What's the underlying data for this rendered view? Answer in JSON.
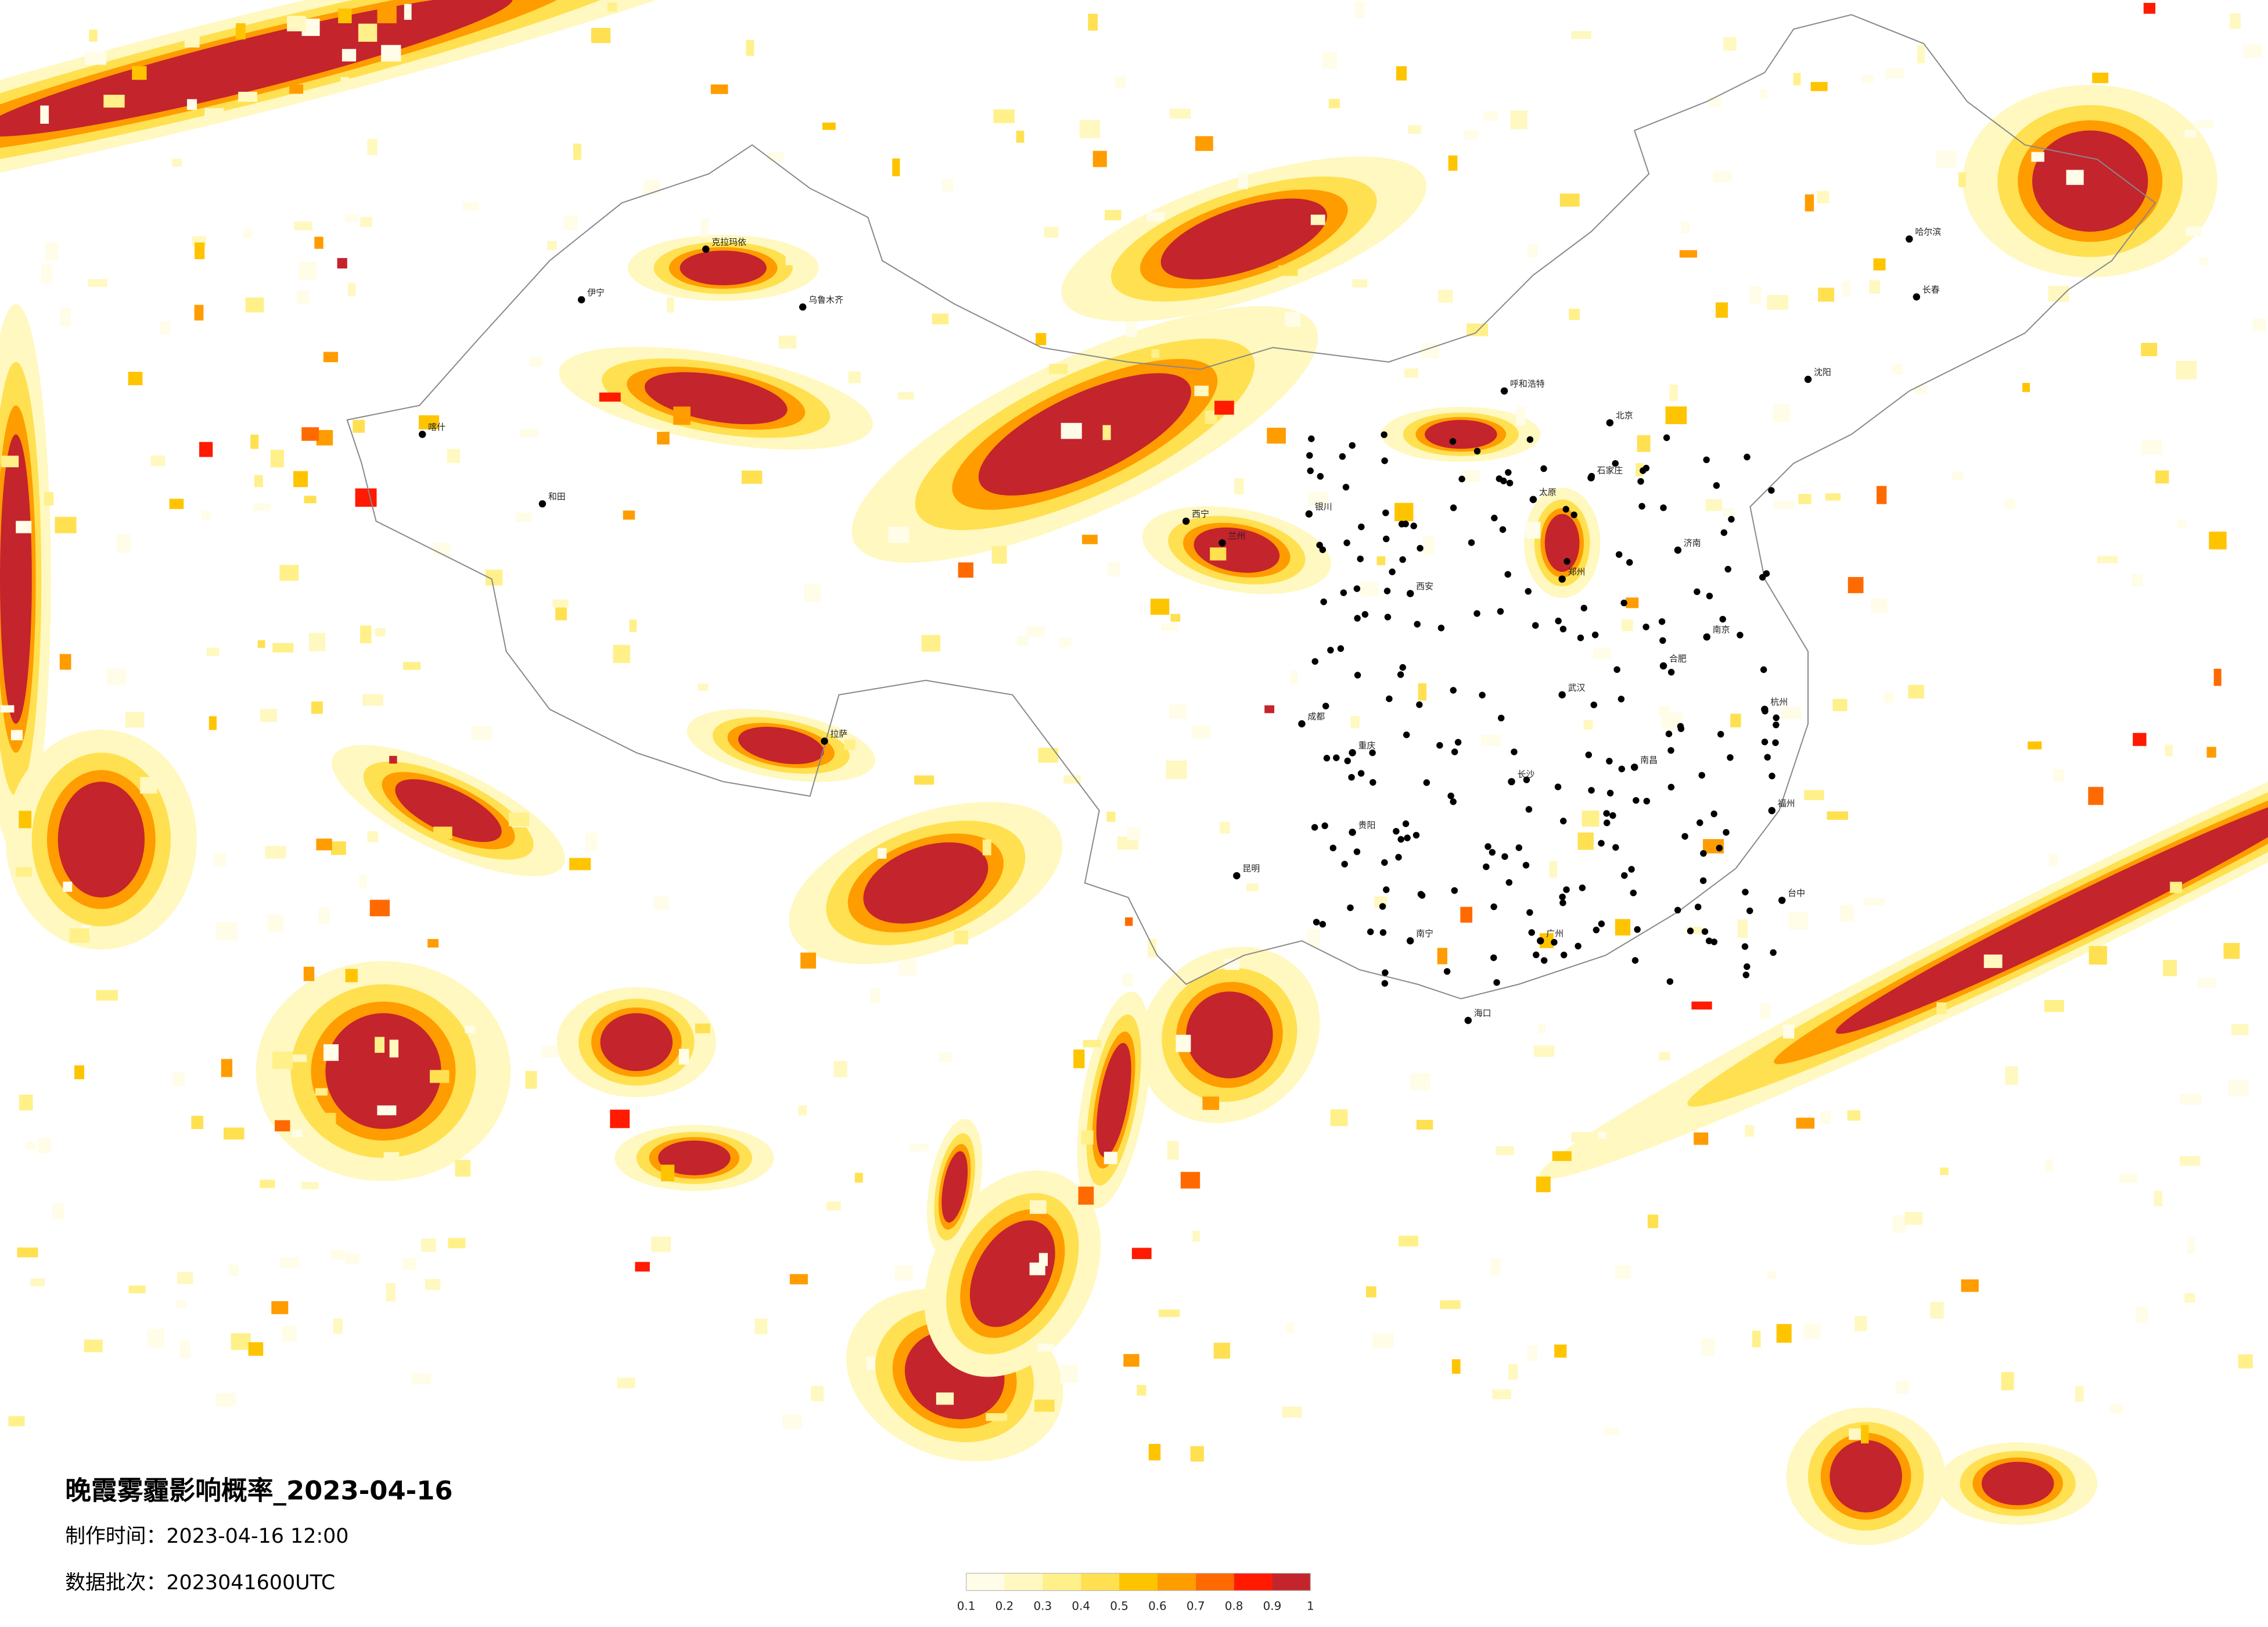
{
  "header": {
    "title": "晚霞雾霾影响概率_2023-04-16",
    "made_time": "制作时间：2023-04-16 12:00",
    "batch": "数据批次：2023041600UTC"
  },
  "legend": {
    "ticks": [
      0.1,
      0.2,
      0.3,
      0.4,
      0.5,
      0.6,
      0.7,
      0.8,
      0.9,
      1
    ],
    "colors": [
      "#fffce8",
      "#fff8c0",
      "#fff08a",
      "#ffe050",
      "#ffc400",
      "#ff9c00",
      "#ff6a00",
      "#ff1a00",
      "#c4242c"
    ]
  },
  "cities": [
    "喀什",
    "和田",
    "伊宁",
    "克拉玛依",
    "乌鲁木齐",
    "拉萨",
    "西宁",
    "兰州",
    "银川",
    "呼和浩特",
    "北京",
    "石家庄",
    "太原",
    "济南",
    "郑州",
    "西安",
    "成都",
    "重庆",
    "贵阳",
    "昆明",
    "南宁",
    "广州",
    "海口",
    "长沙",
    "武汉",
    "南京",
    "杭州",
    "合肥",
    "南昌",
    "福州",
    "台中",
    "沈阳",
    "长春",
    "哈尔滨"
  ]
}
